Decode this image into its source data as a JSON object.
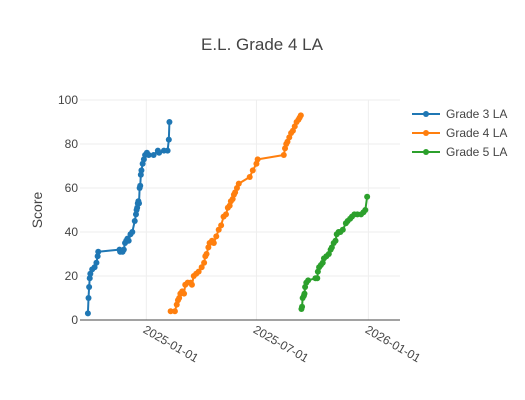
{
  "chart_data": {
    "type": "line",
    "title": "E.L. Grade 4 LA",
    "xlabel": "",
    "ylabel": "Score",
    "xlim": [
      "2024-09-14",
      "2026-02-22"
    ],
    "ylim": [
      0,
      100
    ],
    "y_ticks": [
      0,
      20,
      40,
      60,
      80,
      100
    ],
    "x_ticks": [
      "2025-01-01",
      "2025-07-01",
      "2026-01-01"
    ],
    "grid": true,
    "legend_position": "top-right",
    "series": [
      {
        "name": "Grade 3 LA",
        "color": "#1f77b4",
        "points": [
          [
            "2024-09-27",
            3
          ],
          [
            "2024-09-28",
            10
          ],
          [
            "2024-09-29",
            15
          ],
          [
            "2024-09-30",
            19
          ],
          [
            "2024-10-01",
            21
          ],
          [
            "2024-10-04",
            23
          ],
          [
            "2024-10-08",
            24
          ],
          [
            "2024-10-11",
            26
          ],
          [
            "2024-10-13",
            29
          ],
          [
            "2024-10-14",
            31
          ],
          [
            "2024-11-18",
            32
          ],
          [
            "2024-11-19",
            31
          ],
          [
            "2024-11-23",
            31
          ],
          [
            "2024-11-25",
            32
          ],
          [
            "2024-11-27",
            35
          ],
          [
            "2024-11-29",
            36
          ],
          [
            "2024-12-01",
            37
          ],
          [
            "2024-12-03",
            36
          ],
          [
            "2024-12-06",
            39
          ],
          [
            "2024-12-09",
            40
          ],
          [
            "2024-12-13",
            45
          ],
          [
            "2024-12-15",
            48
          ],
          [
            "2024-12-16",
            50
          ],
          [
            "2024-12-17",
            51
          ],
          [
            "2024-12-18",
            53
          ],
          [
            "2024-12-19",
            54
          ],
          [
            "2024-12-20",
            53
          ],
          [
            "2024-12-21",
            60
          ],
          [
            "2024-12-22",
            61
          ],
          [
            "2024-12-23",
            66
          ],
          [
            "2024-12-24",
            68
          ],
          [
            "2024-12-26",
            71
          ],
          [
            "2024-12-28",
            73
          ],
          [
            "2024-12-30",
            75
          ],
          [
            "2025-01-02",
            76
          ],
          [
            "2025-01-05",
            75
          ],
          [
            "2025-01-13",
            75
          ],
          [
            "2025-01-20",
            77
          ],
          [
            "2025-01-22",
            76
          ],
          [
            "2025-01-30",
            77
          ],
          [
            "2025-02-05",
            77
          ],
          [
            "2025-02-07",
            82
          ],
          [
            "2025-02-08",
            90
          ]
        ]
      },
      {
        "name": "Grade 4 LA",
        "color": "#ff7f0e",
        "points": [
          [
            "2025-02-10",
            4
          ],
          [
            "2025-02-17",
            4
          ],
          [
            "2025-02-20",
            7
          ],
          [
            "2025-02-22",
            9
          ],
          [
            "2025-02-24",
            10
          ],
          [
            "2025-02-26",
            12
          ],
          [
            "2025-03-01",
            13
          ],
          [
            "2025-03-04",
            12
          ],
          [
            "2025-03-06",
            16
          ],
          [
            "2025-03-10",
            17
          ],
          [
            "2025-03-15",
            17
          ],
          [
            "2025-03-17",
            16
          ],
          [
            "2025-03-20",
            20
          ],
          [
            "2025-03-24",
            21
          ],
          [
            "2025-03-28",
            22
          ],
          [
            "2025-04-02",
            24
          ],
          [
            "2025-04-06",
            26
          ],
          [
            "2025-04-08",
            29
          ],
          [
            "2025-04-10",
            30
          ],
          [
            "2025-04-13",
            33
          ],
          [
            "2025-04-15",
            35
          ],
          [
            "2025-04-19",
            36
          ],
          [
            "2025-04-22",
            35
          ],
          [
            "2025-04-26",
            38
          ],
          [
            "2025-04-30",
            41
          ],
          [
            "2025-05-04",
            43
          ],
          [
            "2025-05-08",
            47
          ],
          [
            "2025-05-12",
            48
          ],
          [
            "2025-05-15",
            51
          ],
          [
            "2025-05-18",
            52
          ],
          [
            "2025-05-20",
            54
          ],
          [
            "2025-05-23",
            55
          ],
          [
            "2025-05-25",
            57
          ],
          [
            "2025-05-27",
            58
          ],
          [
            "2025-05-30",
            60
          ],
          [
            "2025-06-02",
            62
          ],
          [
            "2025-06-20",
            65
          ],
          [
            "2025-06-25",
            68
          ],
          [
            "2025-07-01",
            71
          ],
          [
            "2025-07-03",
            73
          ],
          [
            "2025-08-15",
            75
          ],
          [
            "2025-08-17",
            78
          ],
          [
            "2025-08-19",
            80
          ],
          [
            "2025-08-21",
            81
          ],
          [
            "2025-08-24",
            83
          ],
          [
            "2025-08-27",
            85
          ],
          [
            "2025-08-30",
            86
          ],
          [
            "2025-09-02",
            88
          ],
          [
            "2025-09-05",
            90
          ],
          [
            "2025-09-08",
            91
          ],
          [
            "2025-09-10",
            92
          ],
          [
            "2025-09-12",
            93
          ]
        ]
      },
      {
        "name": "Grade 5 LA",
        "color": "#2ca02c",
        "points": [
          [
            "2025-09-13",
            5
          ],
          [
            "2025-09-14",
            6
          ],
          [
            "2025-09-15",
            10
          ],
          [
            "2025-09-17",
            11
          ],
          [
            "2025-09-18",
            12
          ],
          [
            "2025-09-19",
            15
          ],
          [
            "2025-09-21",
            17
          ],
          [
            "2025-09-24",
            18
          ],
          [
            "2025-10-06",
            19
          ],
          [
            "2025-10-09",
            19
          ],
          [
            "2025-10-10",
            22
          ],
          [
            "2025-10-12",
            24
          ],
          [
            "2025-10-15",
            25
          ],
          [
            "2025-10-18",
            26
          ],
          [
            "2025-10-20",
            28
          ],
          [
            "2025-10-24",
            29
          ],
          [
            "2025-10-28",
            30
          ],
          [
            "2025-10-31",
            32
          ],
          [
            "2025-11-02",
            33
          ],
          [
            "2025-11-05",
            35
          ],
          [
            "2025-11-08",
            36
          ],
          [
            "2025-11-10",
            39
          ],
          [
            "2025-11-13",
            40
          ],
          [
            "2025-11-16",
            40
          ],
          [
            "2025-11-20",
            41
          ],
          [
            "2025-11-25",
            44
          ],
          [
            "2025-11-28",
            45
          ],
          [
            "2025-12-02",
            46
          ],
          [
            "2025-12-05",
            47
          ],
          [
            "2025-12-09",
            48
          ],
          [
            "2025-12-14",
            48
          ],
          [
            "2025-12-20",
            48
          ],
          [
            "2025-12-24",
            49
          ],
          [
            "2025-12-27",
            50
          ],
          [
            "2025-12-30",
            56
          ]
        ]
      }
    ]
  }
}
